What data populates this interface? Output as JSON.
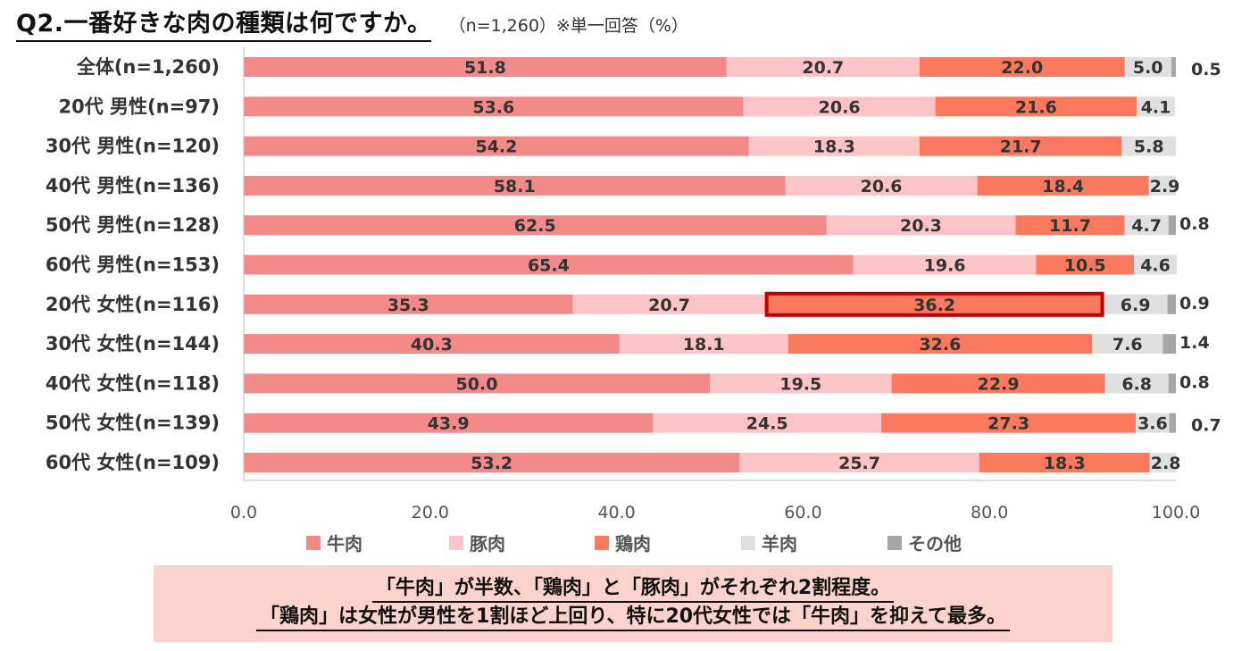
{
  "header": {
    "title": "Q2.一番好きな肉の種類は何ですか。",
    "subtitle": "（n=1,260）※単一回答（%）"
  },
  "chart_data": {
    "type": "bar",
    "orientation": "horizontal",
    "stacked": true,
    "categories": [
      "全体(n=1,260)",
      "20代 男性(n=97)",
      "30代 男性(n=120)",
      "40代 男性(n=136)",
      "50代 男性(n=128)",
      "60代 男性(n=153)",
      "20代 女性(n=116)",
      "30代 女性(n=144)",
      "40代 女性(n=118)",
      "50代 女性(n=139)",
      "60代 女性(n=109)"
    ],
    "series": [
      {
        "name": "牛肉",
        "color": "#f38a8a",
        "values": [
          51.8,
          53.6,
          54.2,
          58.1,
          62.5,
          65.4,
          35.3,
          40.3,
          50.0,
          43.9,
          53.2
        ]
      },
      {
        "name": "豚肉",
        "color": "#fcc4c6",
        "values": [
          20.7,
          20.6,
          18.3,
          20.6,
          20.3,
          19.6,
          20.7,
          18.1,
          19.5,
          24.5,
          25.7
        ]
      },
      {
        "name": "鶏肉",
        "color": "#fb7a5f",
        "values": [
          22.0,
          21.6,
          21.7,
          18.4,
          11.7,
          10.5,
          36.2,
          32.6,
          22.9,
          27.3,
          18.3
        ]
      },
      {
        "name": "羊肉",
        "color": "#e0e0e0",
        "values": [
          5.0,
          4.1,
          5.8,
          2.9,
          4.7,
          4.6,
          6.9,
          7.6,
          6.8,
          3.6,
          2.8
        ]
      },
      {
        "name": "その他",
        "color": "#a6a6a6",
        "values": [
          0.5,
          null,
          null,
          null,
          0.8,
          null,
          0.9,
          1.4,
          0.8,
          0.7,
          null
        ]
      }
    ],
    "xlim": [
      0,
      100
    ],
    "xticks": [
      "0.0",
      "20.0",
      "40.0",
      "60.0",
      "80.0",
      "100.0"
    ],
    "legend_position": "bottom",
    "highlight": {
      "category": "20代 女性(n=116)",
      "series": "鶏肉",
      "color": "#c00000"
    }
  },
  "note": {
    "line1": "「牛肉」が半数、「鶏肉」と「豚肉」がそれぞれ2割程度。",
    "line2": "「鶏肉」は女性が男性を1割ほど上回り、特に20代女性では「牛肉」を抑えて最多。"
  }
}
